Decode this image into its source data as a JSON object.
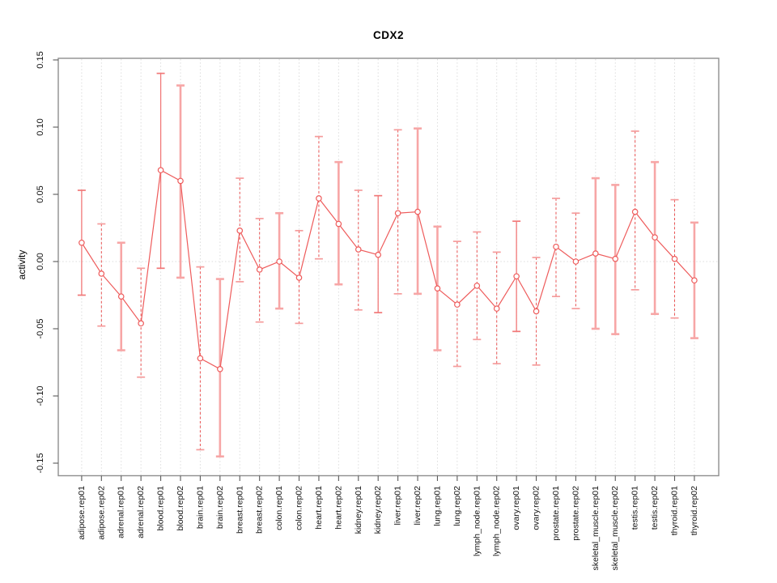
{
  "chart_data": {
    "type": "line",
    "subtype": "points-with-error-bars",
    "title": "CDX2",
    "xlabel": "",
    "ylabel": "activity",
    "ylim": [
      -0.15,
      0.15
    ],
    "yticks": [
      -0.15,
      -0.1,
      -0.05,
      0.0,
      0.05,
      0.1,
      0.15
    ],
    "ytick_labels": [
      "-0.15",
      "-0.10",
      "-0.05",
      "0.00",
      "0.05",
      "0.10",
      "0.15"
    ],
    "grid": "vertical dotted gridline at every category; horizontal dotted line at y=0 only",
    "legend": "none",
    "marker": "open-circle",
    "categories": [
      "adipose.rep01",
      "adipose.rep02",
      "adrenal.rep01",
      "adrenal.rep02",
      "blood.rep01",
      "blood.rep02",
      "brain.rep01",
      "brain.rep02",
      "breast.rep01",
      "breast.rep02",
      "colon.rep01",
      "colon.rep02",
      "heart.rep01",
      "heart.rep02",
      "kidney.rep01",
      "kidney.rep02",
      "liver.rep01",
      "liver.rep02",
      "lung.rep01",
      "lung.rep02",
      "lymph_node.rep01",
      "lymph_node.rep02",
      "ovary.rep01",
      "ovary.rep02",
      "prostate.rep01",
      "prostate.rep02",
      "skeletal_muscle.rep01",
      "skeletal_muscle.rep02",
      "testis.rep01",
      "testis.rep02",
      "thyroid.rep01",
      "thyroid.rep02"
    ],
    "series": [
      {
        "name": "activity",
        "values": [
          0.014,
          -0.009,
          -0.026,
          -0.046,
          0.068,
          0.06,
          -0.072,
          -0.08,
          0.023,
          -0.006,
          0.0,
          -0.012,
          0.047,
          0.028,
          0.009,
          0.005,
          0.036,
          0.037,
          -0.02,
          -0.032,
          -0.018,
          -0.035,
          -0.011,
          -0.037,
          0.011,
          0.0,
          0.006,
          0.002,
          0.037,
          0.018,
          0.002,
          -0.014
        ],
        "upper": [
          0.053,
          0.028,
          0.014,
          -0.005,
          0.14,
          0.131,
          -0.004,
          -0.013,
          0.062,
          0.032,
          0.036,
          0.023,
          0.093,
          0.074,
          0.053,
          0.049,
          0.098,
          0.099,
          0.026,
          0.015,
          0.022,
          0.007,
          0.03,
          0.003,
          0.047,
          0.036,
          0.062,
          0.057,
          0.097,
          0.074,
          0.046,
          0.029
        ],
        "lower": [
          -0.025,
          -0.048,
          -0.066,
          -0.086,
          -0.005,
          -0.012,
          -0.14,
          -0.145,
          -0.015,
          -0.045,
          -0.035,
          -0.046,
          0.002,
          -0.017,
          -0.036,
          -0.038,
          -0.024,
          -0.024,
          -0.066,
          -0.078,
          -0.058,
          -0.076,
          -0.052,
          -0.077,
          -0.026,
          -0.035,
          -0.05,
          -0.054,
          -0.021,
          -0.039,
          -0.042,
          -0.057
        ]
      }
    ],
    "bar_styles": [
      "solid",
      "dashed",
      "thick",
      "dashed",
      "solid",
      "thick",
      "dashed",
      "thick",
      "dashed",
      "dashed",
      "thick",
      "dashed",
      "dashed",
      "thick",
      "dashed",
      "solid",
      "dashed",
      "thick",
      "thick",
      "dashed",
      "dashed",
      "dashed",
      "solid",
      "dashed",
      "dashed",
      "dashed",
      "thick",
      "thick",
      "dashed",
      "thick",
      "dashed",
      "thick"
    ],
    "colors": {
      "series": "#ee5b5b",
      "bar_dashed": "#ea5454",
      "bar_solid": "#f17878",
      "bar_thick": "#f7a6a6",
      "cap": "#f59c9c",
      "grid": "#dcdcdc",
      "box": "#8f8f8f",
      "tick": "#5a5a5a",
      "text": "#111111"
    }
  }
}
